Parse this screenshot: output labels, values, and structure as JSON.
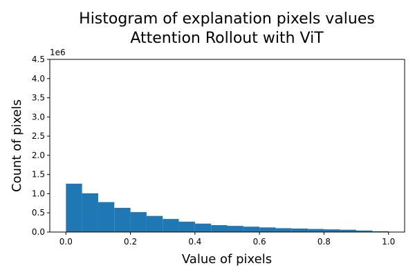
{
  "chart_data": {
    "type": "bar",
    "title_line1": "Histogram of explanation pixels values",
    "title_line2": "Attention Rollout with ViT",
    "xlabel": "Value of pixels",
    "ylabel": "Count of pixels",
    "y_offset_label": "1e6",
    "xlim": [
      -0.05,
      1.05
    ],
    "ylim": [
      0,
      4.5
    ],
    "y_scale_note": "values in millions (1e6)",
    "grid": false,
    "legend": "none",
    "x_ticks": [
      0.0,
      0.2,
      0.4,
      0.6,
      0.8,
      1.0
    ],
    "x_tick_labels": [
      "0.0",
      "0.2",
      "0.4",
      "0.6",
      "0.8",
      "1.0"
    ],
    "y_ticks": [
      0.0,
      0.5,
      1.0,
      1.5,
      2.0,
      2.5,
      3.0,
      3.5,
      4.0,
      4.5
    ],
    "y_tick_labels": [
      "0.0",
      "0.5",
      "1.0",
      "1.5",
      "2.0",
      "2.5",
      "3.0",
      "3.5",
      "4.0",
      "4.5"
    ],
    "bin_edges": [
      0.0,
      0.05,
      0.1,
      0.15,
      0.2,
      0.25,
      0.3,
      0.35,
      0.4,
      0.45,
      0.5,
      0.55,
      0.6,
      0.65,
      0.7,
      0.75,
      0.8,
      0.85,
      0.9,
      0.95,
      1.0
    ],
    "values": [
      1.26,
      1.01,
      0.78,
      0.63,
      0.52,
      0.42,
      0.34,
      0.27,
      0.22,
      0.18,
      0.16,
      0.14,
      0.12,
      0.1,
      0.09,
      0.08,
      0.07,
      0.06,
      0.04,
      0.02
    ],
    "bar_color": "#1f77b4"
  }
}
